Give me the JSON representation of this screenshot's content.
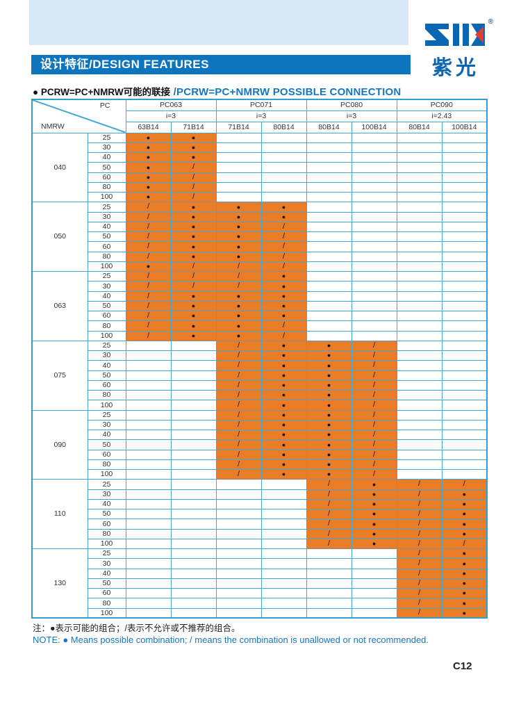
{
  "header": {
    "title": "设计特征/DESIGN FEATURES",
    "logo": {
      "mark": "ZIK",
      "registered": "®",
      "cn": "紫光"
    }
  },
  "section": {
    "title_zh": "● PCRW=PC+NMRW可能的联接",
    "title_en": "/PCRW=PC+NMRW POSSIBLE CONNECTION"
  },
  "table": {
    "corner": {
      "top_label": "PC",
      "bottom_label": "NMRW"
    },
    "pc_groups": [
      {
        "label": "PC063",
        "ratio": "i=3",
        "subs": [
          "63B14",
          "71B14"
        ]
      },
      {
        "label": "PC071",
        "ratio": "i=3",
        "subs": [
          "71B14",
          "80B14"
        ]
      },
      {
        "label": "PC080",
        "ratio": "i=3",
        "subs": [
          "80B14",
          "100B14"
        ]
      },
      {
        "label": "PC090",
        "ratio": "i=2.43",
        "subs": [
          "80B14",
          "100B14"
        ]
      }
    ],
    "symbols": {
      "d": "●",
      "s": "/"
    },
    "groups": [
      {
        "nmrw": "040",
        "orange_cols": [
          0,
          1
        ],
        "rows": [
          {
            "size": "25",
            "cells": [
              "d",
              "d",
              "",
              "",
              "",
              "",
              "",
              ""
            ]
          },
          {
            "size": "30",
            "cells": [
              "d",
              "d",
              "",
              "",
              "",
              "",
              "",
              ""
            ]
          },
          {
            "size": "40",
            "cells": [
              "d",
              "d",
              "",
              "",
              "",
              "",
              "",
              ""
            ]
          },
          {
            "size": "50",
            "cells": [
              "d",
              "s",
              "",
              "",
              "",
              "",
              "",
              ""
            ]
          },
          {
            "size": "60",
            "cells": [
              "d",
              "s",
              "",
              "",
              "",
              "",
              "",
              ""
            ]
          },
          {
            "size": "80",
            "cells": [
              "d",
              "s",
              "",
              "",
              "",
              "",
              "",
              ""
            ]
          },
          {
            "size": "100",
            "cells": [
              "d",
              "s",
              "",
              "",
              "",
              "",
              "",
              ""
            ]
          }
        ]
      },
      {
        "nmrw": "050",
        "orange_cols": [
          0,
          3
        ],
        "rows": [
          {
            "size": "25",
            "cells": [
              "s",
              "d",
              "d",
              "d",
              "",
              "",
              "",
              ""
            ]
          },
          {
            "size": "30",
            "cells": [
              "s",
              "d",
              "d",
              "d",
              "",
              "",
              "",
              ""
            ]
          },
          {
            "size": "40",
            "cells": [
              "s",
              "d",
              "d",
              "s",
              "",
              "",
              "",
              ""
            ]
          },
          {
            "size": "50",
            "cells": [
              "s",
              "d",
              "d",
              "s",
              "",
              "",
              "",
              ""
            ]
          },
          {
            "size": "60",
            "cells": [
              "s",
              "d",
              "d",
              "s",
              "",
              "",
              "",
              ""
            ]
          },
          {
            "size": "80",
            "cells": [
              "s",
              "d",
              "d",
              "s",
              "",
              "",
              "",
              ""
            ]
          },
          {
            "size": "100",
            "cells": [
              "d",
              "s",
              "s",
              "s",
              "",
              "",
              "",
              ""
            ]
          }
        ]
      },
      {
        "nmrw": "063",
        "orange_cols": [
          0,
          3
        ],
        "rows": [
          {
            "size": "25",
            "cells": [
              "s",
              "s",
              "s",
              "d",
              "",
              "",
              "",
              ""
            ]
          },
          {
            "size": "30",
            "cells": [
              "s",
              "s",
              "s",
              "d",
              "",
              "",
              "",
              ""
            ]
          },
          {
            "size": "40",
            "cells": [
              "s",
              "d",
              "d",
              "d",
              "",
              "",
              "",
              ""
            ]
          },
          {
            "size": "50",
            "cells": [
              "s",
              "d",
              "d",
              "d",
              "",
              "",
              "",
              ""
            ]
          },
          {
            "size": "60",
            "cells": [
              "s",
              "d",
              "d",
              "d",
              "",
              "",
              "",
              ""
            ]
          },
          {
            "size": "80",
            "cells": [
              "s",
              "d",
              "d",
              "s",
              "",
              "",
              "",
              ""
            ]
          },
          {
            "size": "100",
            "cells": [
              "s",
              "d",
              "d",
              "s",
              "",
              "",
              "",
              ""
            ]
          }
        ]
      },
      {
        "nmrw": "075",
        "orange_cols": [
          2,
          5
        ],
        "rows": [
          {
            "size": "25",
            "cells": [
              "",
              "",
              "s",
              "d",
              "d",
              "s",
              "",
              ""
            ]
          },
          {
            "size": "30",
            "cells": [
              "",
              "",
              "s",
              "d",
              "d",
              "s",
              "",
              ""
            ]
          },
          {
            "size": "40",
            "cells": [
              "",
              "",
              "s",
              "d",
              "d",
              "s",
              "",
              ""
            ]
          },
          {
            "size": "50",
            "cells": [
              "",
              "",
              "s",
              "d",
              "d",
              "s",
              "",
              ""
            ]
          },
          {
            "size": "60",
            "cells": [
              "",
              "",
              "s",
              "d",
              "d",
              "s",
              "",
              ""
            ]
          },
          {
            "size": "80",
            "cells": [
              "",
              "",
              "s",
              "d",
              "d",
              "s",
              "",
              ""
            ]
          },
          {
            "size": "100",
            "cells": [
              "",
              "",
              "s",
              "d",
              "d",
              "s",
              "",
              ""
            ]
          }
        ]
      },
      {
        "nmrw": "090",
        "orange_cols": [
          2,
          5
        ],
        "rows": [
          {
            "size": "25",
            "cells": [
              "",
              "",
              "s",
              "d",
              "d",
              "s",
              "",
              ""
            ]
          },
          {
            "size": "30",
            "cells": [
              "",
              "",
              "s",
              "d",
              "d",
              "s",
              "",
              ""
            ]
          },
          {
            "size": "40",
            "cells": [
              "",
              "",
              "s",
              "d",
              "d",
              "s",
              "",
              ""
            ]
          },
          {
            "size": "50",
            "cells": [
              "",
              "",
              "s",
              "d",
              "d",
              "s",
              "",
              ""
            ]
          },
          {
            "size": "60",
            "cells": [
              "",
              "",
              "s",
              "d",
              "d",
              "s",
              "",
              ""
            ]
          },
          {
            "size": "80",
            "cells": [
              "",
              "",
              "s",
              "d",
              "d",
              "s",
              "",
              ""
            ]
          },
          {
            "size": "100",
            "cells": [
              "",
              "",
              "s",
              "d",
              "d",
              "s",
              "",
              ""
            ]
          }
        ]
      },
      {
        "nmrw": "110",
        "orange_cols": [
          4,
          7
        ],
        "rows": [
          {
            "size": "25",
            "cells": [
              "",
              "",
              "",
              "",
              "s",
              "d",
              "s",
              "s"
            ]
          },
          {
            "size": "30",
            "cells": [
              "",
              "",
              "",
              "",
              "s",
              "d",
              "s",
              "d"
            ]
          },
          {
            "size": "40",
            "cells": [
              "",
              "",
              "",
              "",
              "s",
              "d",
              "s",
              "d"
            ]
          },
          {
            "size": "50",
            "cells": [
              "",
              "",
              "",
              "",
              "s",
              "d",
              "s",
              "d"
            ]
          },
          {
            "size": "60",
            "cells": [
              "",
              "",
              "",
              "",
              "s",
              "d",
              "s",
              "d"
            ]
          },
          {
            "size": "80",
            "cells": [
              "",
              "",
              "",
              "",
              "s",
              "d",
              "s",
              "d"
            ]
          },
          {
            "size": "100",
            "cells": [
              "",
              "",
              "",
              "",
              "s",
              "d",
              "s",
              "s"
            ]
          }
        ]
      },
      {
        "nmrw": "130",
        "orange_cols": [
          6,
          7
        ],
        "rows": [
          {
            "size": "25",
            "cells": [
              "",
              "",
              "",
              "",
              "",
              "",
              "s",
              "d"
            ]
          },
          {
            "size": "30",
            "cells": [
              "",
              "",
              "",
              "",
              "",
              "",
              "s",
              "d"
            ]
          },
          {
            "size": "40",
            "cells": [
              "",
              "",
              "",
              "",
              "",
              "",
              "s",
              "d"
            ]
          },
          {
            "size": "50",
            "cells": [
              "",
              "",
              "",
              "",
              "",
              "",
              "s",
              "d"
            ]
          },
          {
            "size": "60",
            "cells": [
              "",
              "",
              "",
              "",
              "",
              "",
              "s",
              "d"
            ]
          },
          {
            "size": "80",
            "cells": [
              "",
              "",
              "",
              "",
              "",
              "",
              "s",
              "d"
            ]
          },
          {
            "size": "100",
            "cells": [
              "",
              "",
              "",
              "",
              "",
              "",
              "s",
              "d"
            ]
          }
        ]
      }
    ]
  },
  "notes": {
    "zh": "注：●表示可能的组合；/表示不允许或不推荐的组合。",
    "en": "NOTE: ● Means possible combination; / means the combination is unallowed or not recommended."
  },
  "page_number": "C12",
  "colors": {
    "banner": "#d9e9f7",
    "titlebar": "#0d75bd",
    "accent_blue": "#1577c0",
    "table_border": "#43a7da",
    "orange": "#eb7c27",
    "logo_blue": "#0a66b2",
    "logo_red": "#e23a2e"
  }
}
